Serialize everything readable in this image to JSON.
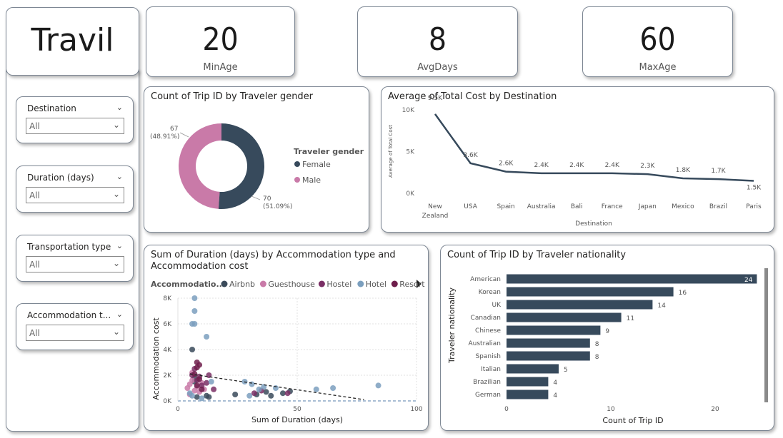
{
  "app_title": "Travil",
  "kpis": [
    {
      "value": "20",
      "label": "MinAge"
    },
    {
      "value": "8",
      "label": "AvgDays"
    },
    {
      "value": "60",
      "label": "MaxAge"
    }
  ],
  "slicers": [
    {
      "label": "Destination",
      "value": "All"
    },
    {
      "label": "Duration (days)",
      "value": "All"
    },
    {
      "label": "Transportation type",
      "value": "All"
    },
    {
      "label": "Accommodation t...",
      "value": "All"
    }
  ],
  "colors": {
    "dark": "#374a5c",
    "pink": "#c97aa8",
    "purple": "#7a2f65",
    "blue": "#7b9fbe",
    "resort": "#6e1d4b",
    "airbnb": "#3a4a5a"
  },
  "chart_data": [
    {
      "type": "donut",
      "title": "Count of Trip ID by Traveler gender",
      "legend_title": "Traveler gender",
      "slices": [
        {
          "name": "Female",
          "value": 70,
          "label": "70",
          "pct": "(51.09%)",
          "color": "#374a5c"
        },
        {
          "name": "Male",
          "value": 67,
          "label": "67",
          "pct": "(48.91%)",
          "color": "#c97aa8"
        }
      ]
    },
    {
      "type": "line",
      "title": "Average of Total Cost by Destination",
      "xlabel": "Destination",
      "ylabel": "Average of Total Cost",
      "yticks": [
        "0K",
        "5K",
        "10K"
      ],
      "ylim": [
        0,
        10000
      ],
      "categories": [
        "New Zealand",
        "USA",
        "Spain",
        "Australia",
        "Bali",
        "France",
        "Japan",
        "Mexico",
        "Brazil",
        "Paris"
      ],
      "category_lines": [
        [
          "New",
          "Zealand"
        ],
        [
          "USA"
        ],
        [
          "Spain"
        ],
        [
          "Australia"
        ],
        [
          "Bali"
        ],
        [
          "France"
        ],
        [
          "Japan"
        ],
        [
          "Mexico"
        ],
        [
          "Brazil"
        ],
        [
          "Paris"
        ]
      ],
      "values": [
        9500,
        3600,
        2600,
        2400,
        2400,
        2400,
        2300,
        1800,
        1700,
        1500
      ],
      "labels": [
        "9.5K",
        "3.6K",
        "2.6K",
        "2.4K",
        "2.4K",
        "2.4K",
        "2.3K",
        "1.8K",
        "1.7K",
        "1.5K"
      ]
    },
    {
      "type": "scatter",
      "title_line1": "Sum of Duration (days) by Accommodation type and",
      "title_line2": "Accommodation cost",
      "legend_title": "Accommodatio...",
      "xlabel": "Sum of Duration (days)",
      "ylabel": "Accommodation cost",
      "xlim": [
        0,
        100
      ],
      "ylim": [
        0,
        8000
      ],
      "xticks": [
        "0",
        "50",
        "100"
      ],
      "yticks": [
        "0K",
        "2K",
        "4K",
        "6K",
        "8K"
      ],
      "series": [
        {
          "name": "Airbnb",
          "color": "#3a4a5a",
          "points": [
            [
              6,
              4000
            ],
            [
              7,
              1500
            ],
            [
              7,
              1800
            ],
            [
              24,
              500
            ],
            [
              33,
              500
            ],
            [
              37,
              700
            ],
            [
              39,
              400
            ],
            [
              44,
              600
            ],
            [
              47,
              750
            ],
            [
              8,
              300
            ],
            [
              12,
              400
            ],
            [
              13,
              300
            ]
          ]
        },
        {
          "name": "Guesthouse",
          "color": "#c97aa8",
          "points": [
            [
              4,
              1000
            ],
            [
              5,
              1300
            ],
            [
              6,
              1600
            ],
            [
              7,
              800
            ],
            [
              8,
              1100
            ],
            [
              9,
              700
            ],
            [
              10,
              1400
            ],
            [
              6,
              2200
            ],
            [
              11,
              900
            ],
            [
              5,
              500
            ]
          ]
        },
        {
          "name": "Hostel",
          "color": "#7a2f65",
          "points": [
            [
              6,
              2000
            ],
            [
              7,
              2500
            ],
            [
              8,
              1600
            ],
            [
              9,
              1900
            ],
            [
              10,
              1200
            ],
            [
              12,
              1400
            ],
            [
              13,
              2000
            ],
            [
              15,
              900
            ],
            [
              32,
              600
            ],
            [
              46,
              600
            ],
            [
              35,
              800
            ]
          ]
        },
        {
          "name": "Hotel",
          "color": "#7b9fbe",
          "points": [
            [
              7,
              8000
            ],
            [
              7,
              7000
            ],
            [
              6,
              6000
            ],
            [
              7,
              6000
            ],
            [
              12,
              5000
            ],
            [
              5,
              600
            ],
            [
              6,
              400
            ],
            [
              14,
              1500
            ],
            [
              28,
              1500
            ],
            [
              31,
              1300
            ],
            [
              34,
              900
            ],
            [
              36,
              1100
            ],
            [
              41,
              1000
            ],
            [
              58,
              900
            ],
            [
              65,
              1000
            ],
            [
              84,
              1200
            ],
            [
              10,
              200
            ],
            [
              30,
              400
            ]
          ]
        },
        {
          "name": "Resort",
          "color": "#6e1d4b",
          "points": [
            [
              8,
              3000
            ],
            [
              9,
              2800
            ],
            [
              7,
              2100
            ],
            [
              8,
              2600
            ],
            [
              9,
              1700
            ],
            [
              8,
              1200
            ],
            [
              10,
              900
            ]
          ]
        }
      ],
      "trend": [
        [
          5,
          2100
        ],
        [
          78,
          100
        ]
      ]
    },
    {
      "type": "bar",
      "orientation": "horizontal",
      "title": "Count of Trip ID by Traveler nationality",
      "xlabel": "Count of Trip ID",
      "ylabel": "Traveler nationality",
      "xticks": [
        "0",
        "10",
        "20"
      ],
      "xlim": [
        0,
        25
      ],
      "categories": [
        "American",
        "Korean",
        "UK",
        "Canadian",
        "Chinese",
        "Australian",
        "Spanish",
        "Italian",
        "Brazilian",
        "German"
      ],
      "values": [
        24,
        16,
        14,
        11,
        9,
        8,
        8,
        5,
        4,
        4
      ]
    }
  ]
}
